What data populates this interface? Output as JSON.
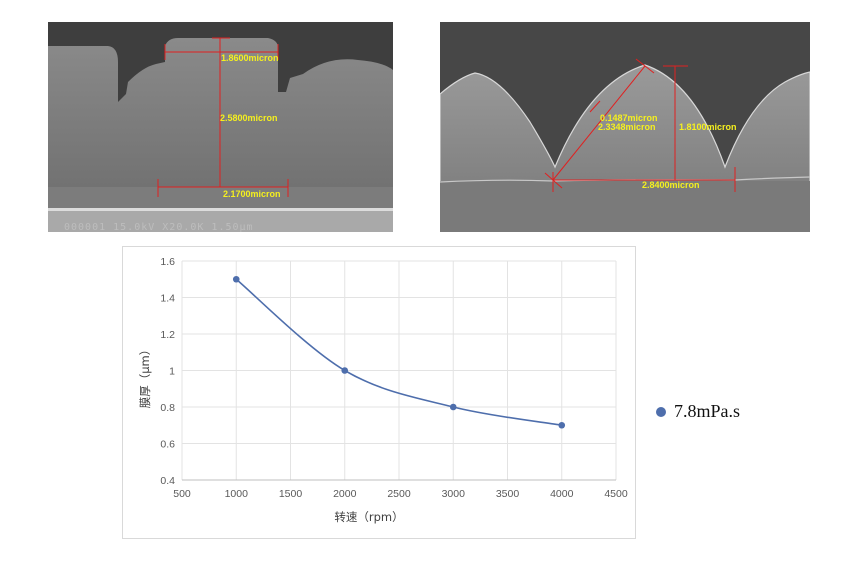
{
  "sem_left": {
    "labels": [
      "1.8600micron",
      "2.5800micron",
      "2.1700micron"
    ],
    "footer": "000001  15.0kV  X20.0K  1.50µm"
  },
  "sem_right": {
    "labels": [
      "0.1487micron",
      "2.3348micron",
      "1.8100micron",
      "2.8400micron"
    ]
  },
  "colors": {
    "series": "#4e6eac",
    "measure": "#e02020",
    "label": "#f5f01e"
  },
  "chart_data": {
    "type": "line",
    "title": "",
    "xlabel": "转速（rpm）",
    "ylabel": "膜厚（μm）",
    "xlim": [
      500,
      4500
    ],
    "ylim": [
      0.4,
      1.6
    ],
    "xticks": [
      500,
      1000,
      1500,
      2000,
      2500,
      3000,
      3500,
      4000,
      4500
    ],
    "yticks": [
      0.4,
      0.6,
      0.8,
      1.0,
      1.2,
      1.4,
      1.6
    ],
    "xtick_labels": [
      "500",
      "1000",
      "1500",
      "2000",
      "2500",
      "3000",
      "3500",
      "4000",
      "4500"
    ],
    "ytick_labels": [
      "0.4",
      "0.6",
      "0.8",
      "1",
      "1.2",
      "1.4",
      "1.6"
    ],
    "grid": true,
    "smooth": true,
    "legend_position": "right",
    "series": [
      {
        "name": "7.8mPa.s",
        "x": [
          1000,
          2000,
          3000,
          4000
        ],
        "y": [
          1.5,
          1.0,
          0.8,
          0.7
        ]
      }
    ]
  }
}
